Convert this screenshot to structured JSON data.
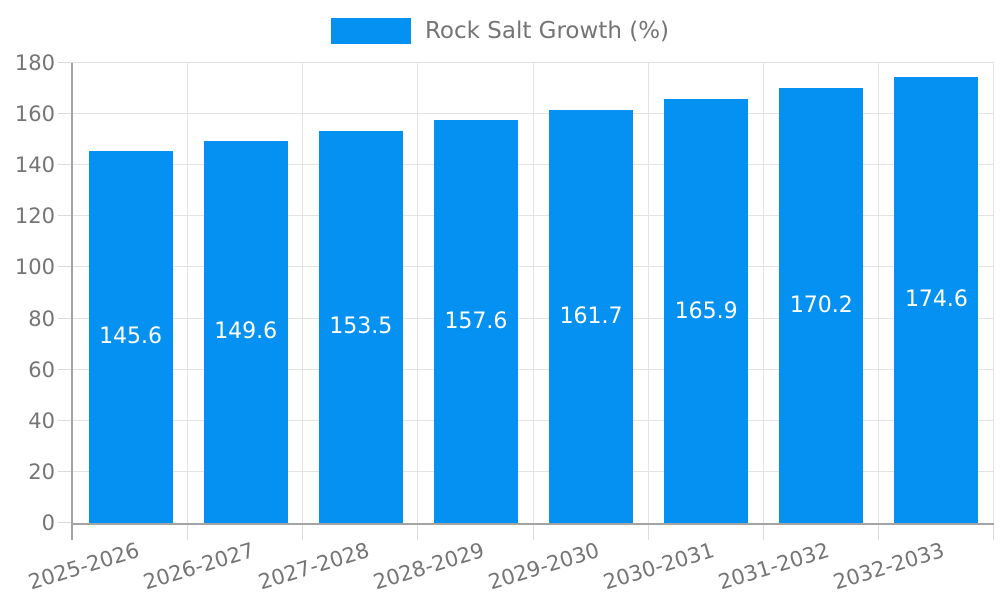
{
  "chart_data": {
    "type": "bar",
    "title": "",
    "legend": {
      "label": "Rock Salt Growth (%)",
      "position": "top-center"
    },
    "categories": [
      "2025-2026",
      "2026-2027",
      "2027-2028",
      "2028-2029",
      "2029-2030",
      "2030-2031",
      "2031-2032",
      "2032-2033"
    ],
    "series": [
      {
        "name": "Rock Salt Growth (%)",
        "values": [
          145.6,
          149.6,
          153.5,
          157.6,
          161.7,
          165.9,
          170.2,
          174.6
        ],
        "color": "#0591f2"
      }
    ],
    "xlabel": "",
    "ylabel": "",
    "ylim": [
      0,
      180
    ],
    "yticks": [
      0,
      20,
      40,
      60,
      80,
      100,
      120,
      140,
      160,
      180
    ],
    "grid": "horizontal-lines-and-category-boundary-lines",
    "legend_position": "top",
    "value_label_position": "inside-center",
    "x_tick_rotation_deg": -17
  },
  "colors": {
    "background": "#ffffff",
    "bar": "#0591f2",
    "text": "#757575",
    "value_label_text": "#ffffff",
    "axis": "#a3a3a3",
    "gridline": "#e3e3e3",
    "tick": "#dcdcdc"
  }
}
